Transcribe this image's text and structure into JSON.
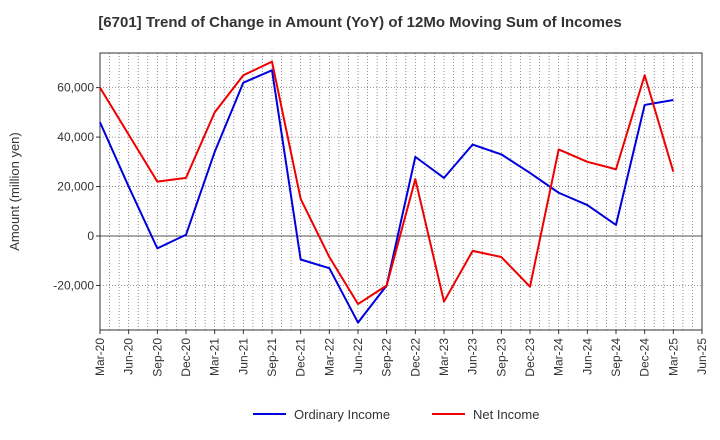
{
  "chart_data": {
    "type": "line",
    "title": "[6701]  Trend of Change in Amount (YoY) of 12Mo Moving Sum of Incomes",
    "ylabel": "Amount (million yen)",
    "xlabel": "",
    "ylim": [
      -38000,
      74000
    ],
    "y_ticks": [
      -20000,
      0,
      20000,
      40000,
      60000
    ],
    "y_tick_labels": [
      "-20,000",
      "0",
      "20,000",
      "40,000",
      "60,000"
    ],
    "x_tick_labels": [
      "Mar-20",
      "Jun-20",
      "Sep-20",
      "Dec-20",
      "Mar-21",
      "Jun-21",
      "Sep-21",
      "Dec-21",
      "Mar-22",
      "Jun-22",
      "Sep-22",
      "Dec-22",
      "Mar-23",
      "Jun-23",
      "Sep-23",
      "Dec-23",
      "Mar-24",
      "Jun-24",
      "Sep-24",
      "Dec-24",
      "Mar-25",
      "Jun-25"
    ],
    "grid": true,
    "legend_position": "bottom",
    "series": [
      {
        "name": "Ordinary Income",
        "color": "#0000dd",
        "values": [
          46000,
          20000,
          -5000,
          500,
          34000,
          62000,
          67000,
          -9500,
          -13000,
          -35000,
          -20000,
          32000,
          23500,
          37000,
          33000,
          25500,
          17500,
          12500,
          4500,
          53000,
          55000,
          null
        ]
      },
      {
        "name": "Net Income",
        "color": "#ee0000",
        "values": [
          60000,
          41000,
          22000,
          23500,
          50000,
          65000,
          70500,
          15000,
          -8500,
          -27500,
          -20000,
          23000,
          -26500,
          -6000,
          -8500,
          -20500,
          35000,
          30000,
          27000,
          65000,
          26000,
          null
        ]
      }
    ]
  }
}
